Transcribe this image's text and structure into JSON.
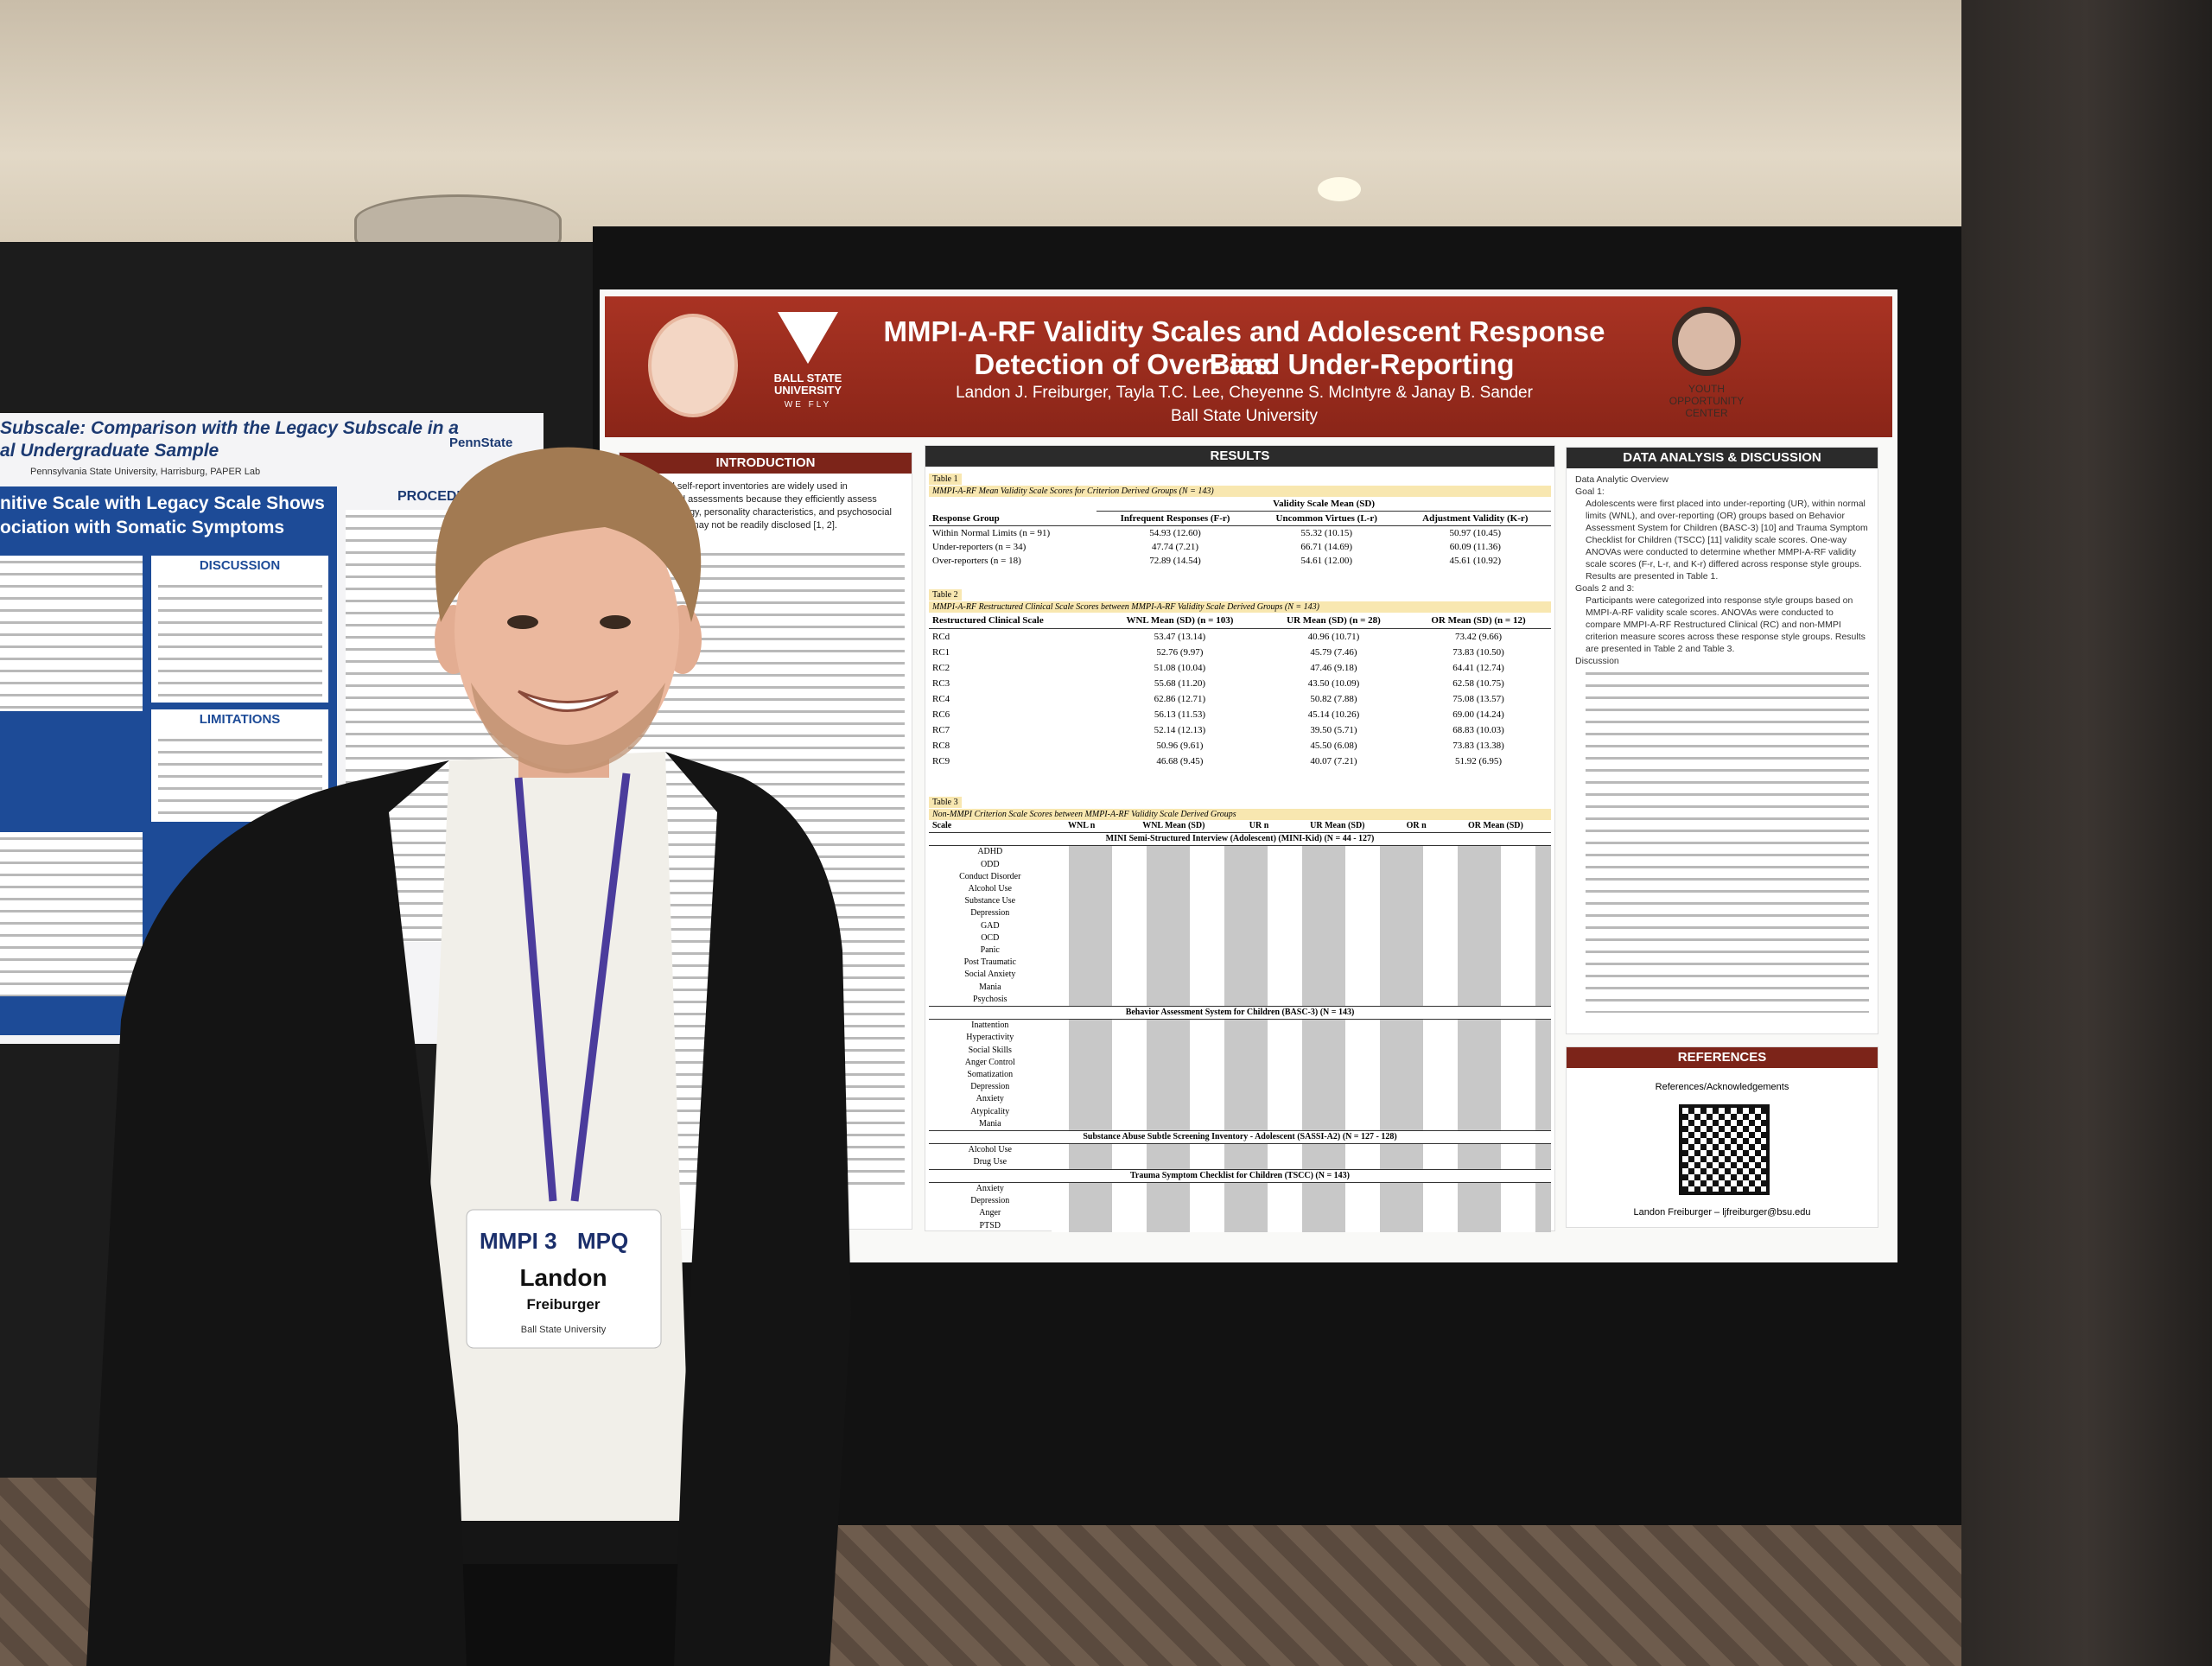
{
  "poster": {
    "title_line1": "MMPI-A-RF Validity Scales and Adolescent Response Bias:",
    "title_line2": "Detection of Over- and Under-Reporting",
    "authors": "Landon J. Freiburger, Tayla T.C. Lee, Cheyenne S. McIntyre & Janay B. Sander",
    "affiliation": "Ball State University",
    "bsu_logo": "BALL STATE UNIVERSITY",
    "bsu_motto": "WE FLY",
    "yoc_logo": "YOUTH OPPORTUNITY CENTER"
  },
  "introduction": {
    "heading": "INTRODUCTION",
    "text": "Broadband self-report inventories are widely used in psychological assessments because they efficiently assess psychopathology, personality characteristics, and psychosocial difficulties that may not be readily disclosed [1, 2]."
  },
  "results": {
    "heading": "RESULTS",
    "table1": {
      "label": "Table 1",
      "caption": "MMPI-A-RF Mean Validity Scale Scores for Criterion Derived Groups (N = 143)",
      "group_header": "Validity Scale Mean (SD)",
      "columns": [
        "Response Group",
        "Infrequent Responses (F-r)",
        "Uncommon Virtues (L-r)",
        "Adjustment Validity (K-r)"
      ],
      "rows": [
        [
          "Within Normal Limits (n = 91)",
          "54.93 (12.60)",
          "55.32 (10.15)",
          "50.97 (10.45)"
        ],
        [
          "Under-reporters (n = 34)",
          "47.74 (7.21)",
          "66.71 (14.69)",
          "60.09 (11.36)"
        ],
        [
          "Over-reporters (n = 18)",
          "72.89 (14.54)",
          "54.61 (12.00)",
          "45.61 (10.92)"
        ]
      ]
    },
    "table2": {
      "label": "Table 2",
      "caption": "MMPI-A-RF Restructured Clinical Scale Scores between MMPI-A-RF Validity Scale Derived Groups (N = 143)",
      "columns": [
        "Restructured Clinical Scale",
        "WNL Mean (SD) (n = 103)",
        "UR Mean (SD) (n = 28)",
        "OR Mean (SD) (n = 12)"
      ],
      "rows": [
        [
          "RCd",
          "53.47 (13.14)",
          "40.96 (10.71)",
          "73.42 (9.66)"
        ],
        [
          "RC1",
          "52.76 (9.97)",
          "45.79 (7.46)",
          "73.83 (10.50)"
        ],
        [
          "RC2",
          "51.08 (10.04)",
          "47.46 (9.18)",
          "64.41 (12.74)"
        ],
        [
          "RC3",
          "55.68 (11.20)",
          "43.50 (10.09)",
          "62.58 (10.75)"
        ],
        [
          "RC4",
          "62.86 (12.71)",
          "50.82 (7.88)",
          "75.08 (13.57)"
        ],
        [
          "RC6",
          "56.13 (11.53)",
          "45.14 (10.26)",
          "69.00 (14.24)"
        ],
        [
          "RC7",
          "52.14 (12.13)",
          "39.50 (5.71)",
          "68.83 (10.03)"
        ],
        [
          "RC8",
          "50.96 (9.61)",
          "45.50 (6.08)",
          "73.83 (13.38)"
        ],
        [
          "RC9",
          "46.68 (9.45)",
          "40.07 (7.21)",
          "51.92 (6.95)"
        ]
      ]
    },
    "table3": {
      "label": "Table 3",
      "caption": "Non-MMPI Criterion Scale Scores between MMPI-A-RF Validity Scale Derived Groups",
      "columns": [
        "Scale",
        "WNL n",
        "WNL Mean (SD)",
        "UR n",
        "UR Mean (SD)",
        "OR n",
        "OR Mean (SD)"
      ],
      "sections": [
        {
          "title": "MINI Semi-Structured Interview (Adolescent) (MINI-Kid) (N = 44 - 127)",
          "scales": [
            "ADHD",
            "ODD",
            "Conduct Disorder",
            "Alcohol Use",
            "Substance Use",
            "Depression",
            "GAD",
            "OCD",
            "Panic",
            "Post Traumatic",
            "Social Anxiety",
            "Mania",
            "Psychosis"
          ]
        },
        {
          "title": "Behavior Assessment System for Children (BASC-3) (N = 143)",
          "scales": [
            "Inattention",
            "Hyperactivity",
            "Social Skills",
            "Anger Control",
            "Somatization",
            "Depression",
            "Anxiety",
            "Atypicality",
            "Mania"
          ]
        },
        {
          "title": "Substance Abuse Subtle Screening Inventory - Adolescent (SASSI-A2) (N = 127 - 128)",
          "scales": [
            "Alcohol Use",
            "Drug Use"
          ]
        },
        {
          "title": "Trauma Symptom Checklist for Children (TSCC) (N = 143)",
          "scales": [
            "Anxiety",
            "Depression",
            "Anger",
            "PTSD"
          ]
        }
      ]
    }
  },
  "discussion": {
    "heading": "DATA ANALYSIS & DISCUSSION",
    "overview": "Data Analytic Overview",
    "goal1": "Goal 1:",
    "goal1_text": "Adolescents were first placed into under-reporting (UR), within normal limits (WNL), and over-reporting (OR) groups based on Behavior Assessment System for Children (BASC-3) [10] and Trauma Symptom Checklist for Children (TSCC) [11] validity scale scores. One-way ANOVAs were conducted to determine whether MMPI-A-RF validity scale scores (F-r, L-r, and K-r) differed across response style groups. Results are presented in Table 1.",
    "goal23": "Goals 2 and 3:",
    "goal23_text": "Participants were categorized into response style groups based on MMPI-A-RF validity scale scores. ANOVAs were conducted to compare MMPI-A-RF Restructured Clinical (RC) and non-MMPI criterion measure scores across these response style groups. Results are presented in Table 2 and Table 3.",
    "subheading": "Discussion"
  },
  "references": {
    "heading": "REFERENCES",
    "text": "References/Acknowledgements",
    "contact": "Landon Freiburger – ljfreiburger@bsu.edu"
  },
  "left_poster": {
    "title_line1": "Subscale: Comparison with the Legacy Subscale in a",
    "title_line2": "al Undergraduate Sample",
    "affiliation": "Pennsylvania State University, Harrisburg, PAPER Lab",
    "logo": "PennState",
    "banner_line1": "nitive Scale with Legacy Scale Shows",
    "banner_line2": "ociation with Somatic Symptoms",
    "discussion": "DISCUSSION",
    "limitations": "LIMITATIONS",
    "procedure": "PROCEDU"
  },
  "badge": {
    "logo1": "MMPI 3",
    "logo2": "MPQ",
    "first_name": "Landon",
    "last_name": "Freiburger",
    "institution": "Ball State University"
  }
}
